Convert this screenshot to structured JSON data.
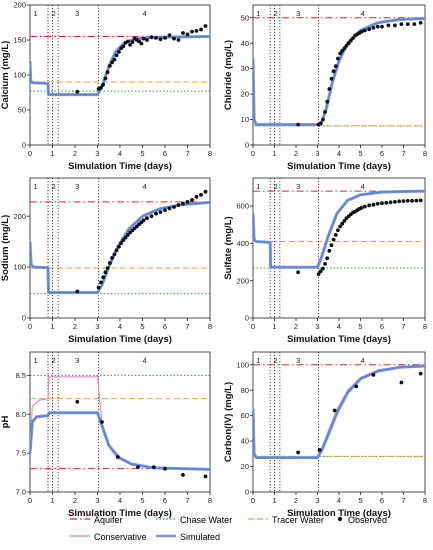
{
  "colors": {
    "aquifer": "#d62728",
    "chase": "#2ca02c",
    "tracer": "#f0a030",
    "observed": "#111111",
    "conservative": "#e07ac8",
    "simulated": "#7f94e0",
    "simulated_blue": "#4f86d9",
    "axis": "#222222"
  },
  "chart_data": [
    {
      "type": "line",
      "ylabel": "Calcium (mg/L)",
      "xlabel": "Simulation Time (days)",
      "xlim": [
        0,
        8
      ],
      "ylim": [
        0,
        200
      ],
      "xticks": [
        "0",
        "1",
        "2",
        "3",
        "4",
        "5",
        "6",
        "7",
        "8"
      ],
      "yticks": [
        "0",
        "50",
        "100",
        "150",
        "200"
      ],
      "xticks_v": [
        0,
        1,
        2,
        3,
        4,
        5,
        6,
        7,
        8
      ],
      "yticks_v": [
        0,
        50,
        100,
        150,
        200
      ],
      "stage_labels": [
        "1",
        "2",
        "3",
        "4"
      ],
      "stage_x": [
        0.25,
        1.05,
        2.1,
        5.1
      ],
      "phase_lines": [
        0.8,
        1.0,
        1.25,
        3.05
      ],
      "aquifer": 155,
      "chase": 77,
      "tracer": 90,
      "sim": [
        [
          0,
          120
        ],
        [
          0.03,
          92
        ],
        [
          0.1,
          89
        ],
        [
          0.8,
          88
        ],
        [
          0.82,
          72
        ],
        [
          1.0,
          72
        ],
        [
          3.0,
          72
        ],
        [
          3.2,
          83
        ],
        [
          3.5,
          112
        ],
        [
          3.8,
          133
        ],
        [
          4.2,
          146
        ],
        [
          4.7,
          152
        ],
        [
          5.5,
          154
        ],
        [
          8,
          155
        ]
      ],
      "cons": null,
      "obs": [
        [
          2.1,
          76
        ],
        [
          3.05,
          80
        ],
        [
          3.15,
          82
        ],
        [
          3.25,
          86
        ],
        [
          3.35,
          95
        ],
        [
          3.45,
          104
        ],
        [
          3.55,
          113
        ],
        [
          3.65,
          118
        ],
        [
          3.75,
          122
        ],
        [
          3.85,
          128
        ],
        [
          3.95,
          133
        ],
        [
          4.05,
          138
        ],
        [
          4.15,
          141
        ],
        [
          4.25,
          146
        ],
        [
          4.35,
          148
        ],
        [
          4.45,
          143
        ],
        [
          4.55,
          147
        ],
        [
          4.65,
          152
        ],
        [
          4.75,
          150
        ],
        [
          4.85,
          148
        ],
        [
          4.95,
          145
        ],
        [
          5.05,
          152
        ],
        [
          5.2,
          150
        ],
        [
          5.4,
          154
        ],
        [
          5.6,
          153
        ],
        [
          5.8,
          151
        ],
        [
          6.0,
          153
        ],
        [
          6.2,
          157
        ],
        [
          6.4,
          152
        ],
        [
          6.6,
          150
        ],
        [
          6.8,
          160
        ],
        [
          7.0,
          158
        ],
        [
          7.2,
          162
        ],
        [
          7.4,
          163
        ],
        [
          7.6,
          165
        ],
        [
          7.8,
          170
        ]
      ]
    },
    {
      "type": "line",
      "ylabel": "Chloride (mg/L)",
      "xlabel": "Simulation Time (days)",
      "xlim": [
        0,
        8
      ],
      "ylim": [
        0,
        55
      ],
      "xticks": [
        "0",
        "1",
        "2",
        "3",
        "4",
        "5",
        "6",
        "7",
        "8"
      ],
      "yticks": [
        "0",
        "10",
        "20",
        "30",
        "40",
        "50"
      ],
      "xticks_v": [
        0,
        1,
        2,
        3,
        4,
        5,
        6,
        7,
        8
      ],
      "yticks_v": [
        0,
        10,
        20,
        30,
        40,
        50
      ],
      "stage_labels": [
        "1",
        "2",
        "3",
        "4"
      ],
      "stage_x": [
        0.25,
        1.05,
        2.1,
        5.1
      ],
      "phase_lines": [
        0.8,
        1.0,
        1.25,
        3.05
      ],
      "aquifer": 50,
      "chase": 7.5,
      "tracer": 7.5,
      "sim": [
        [
          0,
          34
        ],
        [
          0.05,
          10
        ],
        [
          0.15,
          8
        ],
        [
          3.0,
          8
        ],
        [
          3.2,
          9
        ],
        [
          3.4,
          14
        ],
        [
          3.7,
          25
        ],
        [
          4.0,
          33
        ],
        [
          4.4,
          40
        ],
        [
          5.0,
          45
        ],
        [
          5.8,
          48
        ],
        [
          6.8,
          49.3
        ],
        [
          8,
          49.7
        ]
      ],
      "cons": null,
      "obs": [
        [
          2.1,
          8
        ],
        [
          3.05,
          8
        ],
        [
          3.15,
          8.5
        ],
        [
          3.25,
          10
        ],
        [
          3.35,
          13
        ],
        [
          3.45,
          17
        ],
        [
          3.55,
          22
        ],
        [
          3.65,
          26
        ],
        [
          3.75,
          29
        ],
        [
          3.85,
          31
        ],
        [
          3.95,
          34
        ],
        [
          4.05,
          36
        ],
        [
          4.15,
          37
        ],
        [
          4.25,
          38
        ],
        [
          4.35,
          39
        ],
        [
          4.45,
          40
        ],
        [
          4.55,
          41
        ],
        [
          4.65,
          42
        ],
        [
          4.75,
          43
        ],
        [
          4.85,
          43.5
        ],
        [
          4.95,
          44
        ],
        [
          5.05,
          44.5
        ],
        [
          5.2,
          45
        ],
        [
          5.4,
          45.5
        ],
        [
          5.6,
          46
        ],
        [
          5.8,
          46.5
        ],
        [
          6.0,
          46.5
        ],
        [
          6.3,
          47
        ],
        [
          6.6,
          47
        ],
        [
          6.9,
          47.5
        ],
        [
          7.2,
          47.5
        ],
        [
          7.5,
          47.5
        ],
        [
          7.8,
          48
        ]
      ]
    },
    {
      "type": "line",
      "ylabel": "Sodium (mg/L)",
      "xlabel": "Simulation Time (days)",
      "xlim": [
        0,
        8
      ],
      "ylim": [
        0,
        275
      ],
      "xticks": [
        "0",
        "1",
        "2",
        "3",
        "4",
        "5",
        "6",
        "7",
        "8"
      ],
      "yticks": [
        "0",
        "100",
        "200"
      ],
      "xticks_v": [
        0,
        1,
        2,
        3,
        4,
        5,
        6,
        7,
        8
      ],
      "yticks_v": [
        0,
        100,
        200
      ],
      "stage_labels": [
        "1",
        "2",
        "3",
        "4"
      ],
      "stage_x": [
        0.25,
        1.05,
        2.1,
        5.1
      ],
      "phase_lines": [
        0.8,
        1.0,
        1.25,
        3.05
      ],
      "aquifer": 228,
      "chase": 48,
      "tracer": 98,
      "sim": [
        [
          0,
          150
        ],
        [
          0.05,
          105
        ],
        [
          0.15,
          100
        ],
        [
          0.8,
          99
        ],
        [
          0.82,
          50
        ],
        [
          3.0,
          50
        ],
        [
          3.2,
          65
        ],
        [
          3.5,
          100
        ],
        [
          3.9,
          140
        ],
        [
          4.4,
          175
        ],
        [
          5.0,
          200
        ],
        [
          5.8,
          215
        ],
        [
          6.8,
          223
        ],
        [
          8,
          227
        ]
      ],
      "cons": null,
      "obs": [
        [
          2.1,
          52
        ],
        [
          3.05,
          60
        ],
        [
          3.15,
          70
        ],
        [
          3.25,
          80
        ],
        [
          3.35,
          90
        ],
        [
          3.45,
          98
        ],
        [
          3.55,
          108
        ],
        [
          3.65,
          118
        ],
        [
          3.75,
          125
        ],
        [
          3.85,
          133
        ],
        [
          3.95,
          140
        ],
        [
          4.05,
          147
        ],
        [
          4.15,
          153
        ],
        [
          4.25,
          158
        ],
        [
          4.35,
          163
        ],
        [
          4.45,
          168
        ],
        [
          4.55,
          172
        ],
        [
          4.65,
          176
        ],
        [
          4.75,
          180
        ],
        [
          4.85,
          184
        ],
        [
          4.95,
          188
        ],
        [
          5.05,
          192
        ],
        [
          5.2,
          196
        ],
        [
          5.4,
          200
        ],
        [
          5.6,
          205
        ],
        [
          5.8,
          208
        ],
        [
          6.0,
          212
        ],
        [
          6.2,
          215
        ],
        [
          6.4,
          218
        ],
        [
          6.6,
          222
        ],
        [
          6.8,
          225
        ],
        [
          7.0,
          228
        ],
        [
          7.2,
          232
        ],
        [
          7.4,
          238
        ],
        [
          7.6,
          242
        ],
        [
          7.8,
          248
        ]
      ]
    },
    {
      "type": "line",
      "ylabel": "Sulfate (mg/L)",
      "xlabel": "Simulation Time (days)",
      "xlim": [
        0,
        8
      ],
      "ylim": [
        0,
        750
      ],
      "xticks": [
        "0",
        "1",
        "2",
        "3",
        "4",
        "5",
        "6",
        "7",
        "8"
      ],
      "yticks": [
        "0",
        "200",
        "400",
        "600"
      ],
      "xticks_v": [
        0,
        1,
        2,
        3,
        4,
        5,
        6,
        7,
        8
      ],
      "yticks_v": [
        0,
        200,
        400,
        600
      ],
      "stage_labels": [
        "1",
        "2",
        "3",
        "4"
      ],
      "stage_x": [
        0.25,
        1.05,
        2.1,
        5.1
      ],
      "phase_lines": [
        0.8,
        1.0,
        1.25,
        3.05
      ],
      "aquifer": 680,
      "chase": 268,
      "tracer": 410,
      "sim": [
        [
          0,
          560
        ],
        [
          0.05,
          420
        ],
        [
          0.15,
          410
        ],
        [
          0.8,
          405
        ],
        [
          0.82,
          272
        ],
        [
          3.0,
          272
        ],
        [
          3.2,
          330
        ],
        [
          3.5,
          440
        ],
        [
          3.9,
          560
        ],
        [
          4.4,
          630
        ],
        [
          5.0,
          660
        ],
        [
          6.0,
          675
        ],
        [
          8,
          680
        ]
      ],
      "cons": null,
      "obs": [
        [
          2.1,
          245
        ],
        [
          3.05,
          235
        ],
        [
          3.15,
          250
        ],
        [
          3.25,
          265
        ],
        [
          3.35,
          290
        ],
        [
          3.45,
          320
        ],
        [
          3.55,
          360
        ],
        [
          3.65,
          390
        ],
        [
          3.75,
          420
        ],
        [
          3.85,
          445
        ],
        [
          3.95,
          470
        ],
        [
          4.05,
          490
        ],
        [
          4.15,
          505
        ],
        [
          4.25,
          520
        ],
        [
          4.35,
          535
        ],
        [
          4.45,
          545
        ],
        [
          4.55,
          555
        ],
        [
          4.65,
          565
        ],
        [
          4.75,
          570
        ],
        [
          4.85,
          578
        ],
        [
          4.95,
          585
        ],
        [
          5.05,
          590
        ],
        [
          5.2,
          597
        ],
        [
          5.4,
          603
        ],
        [
          5.6,
          607
        ],
        [
          5.8,
          612
        ],
        [
          6.0,
          615
        ],
        [
          6.2,
          617
        ],
        [
          6.4,
          620
        ],
        [
          6.6,
          622
        ],
        [
          6.8,
          625
        ],
        [
          7.0,
          626
        ],
        [
          7.2,
          628
        ],
        [
          7.4,
          628
        ],
        [
          7.6,
          629
        ],
        [
          7.8,
          630
        ]
      ]
    },
    {
      "type": "line",
      "ylabel": "pH",
      "xlabel": "Simulation Time (days)",
      "xlim": [
        0,
        8
      ],
      "ylim": [
        7.0,
        8.8
      ],
      "xticks": [
        "0",
        "1",
        "2",
        "3",
        "4",
        "5",
        "6",
        "7",
        "8"
      ],
      "yticks": [
        "7.0",
        "7.5",
        "8.0",
        "8.5"
      ],
      "xticks_v": [
        0,
        1,
        2,
        3,
        4,
        5,
        6,
        7,
        8
      ],
      "yticks_v": [
        7.0,
        7.5,
        8.0,
        8.5
      ],
      "stage_labels": [
        "1",
        "2",
        "3",
        "4"
      ],
      "stage_x": [
        0.25,
        1.05,
        2.1,
        5.1
      ],
      "phase_lines": [
        0.8,
        1.0,
        1.25,
        3.05
      ],
      "aquifer": 7.3,
      "chase": 8.5,
      "tracer": 8.2,
      "sim": [
        [
          0,
          7.5
        ],
        [
          0.1,
          7.9
        ],
        [
          0.3,
          7.97
        ],
        [
          0.8,
          7.98
        ],
        [
          0.85,
          8.02
        ],
        [
          3.0,
          8.02
        ],
        [
          3.2,
          7.85
        ],
        [
          3.5,
          7.6
        ],
        [
          3.9,
          7.45
        ],
        [
          4.5,
          7.36
        ],
        [
          5.5,
          7.31
        ],
        [
          8,
          7.29
        ]
      ],
      "cons": [
        [
          0,
          7.5
        ],
        [
          0.1,
          8.1
        ],
        [
          0.4,
          8.18
        ],
        [
          0.8,
          8.2
        ],
        [
          0.85,
          8.48
        ],
        [
          3.0,
          8.48
        ],
        [
          3.2,
          7.9
        ],
        [
          3.5,
          7.62
        ],
        [
          4.0,
          7.45
        ],
        [
          4.6,
          7.35
        ],
        [
          5.5,
          7.31
        ],
        [
          8,
          7.3
        ]
      ],
      "obs": [
        [
          2.1,
          8.16
        ],
        [
          3.2,
          7.9
        ],
        [
          3.9,
          7.45
        ],
        [
          4.8,
          7.32
        ],
        [
          5.5,
          7.32
        ],
        [
          6.0,
          7.3
        ],
        [
          6.8,
          7.22
        ],
        [
          7.8,
          7.2
        ]
      ]
    },
    {
      "type": "line",
      "ylabel": "Carbon(IV) (mg/L)",
      "xlabel": "Simulation Time (days)",
      "xlim": [
        0,
        8
      ],
      "ylim": [
        0,
        110
      ],
      "xticks": [
        "0",
        "1",
        "2",
        "3",
        "4",
        "5",
        "6",
        "7",
        "8"
      ],
      "yticks": [
        "0",
        "20",
        "40",
        "60",
        "80",
        "100"
      ],
      "xticks_v": [
        0,
        1,
        2,
        3,
        4,
        5,
        6,
        7,
        8
      ],
      "yticks_v": [
        0,
        20,
        40,
        60,
        80,
        100
      ],
      "stage_labels": [
        "1",
        "2",
        "3",
        "4"
      ],
      "stage_x": [
        0.25,
        1.05,
        2.1,
        5.1
      ],
      "phase_lines": [
        0.8,
        1.0,
        1.25,
        3.05
      ],
      "aquifer": 100,
      "chase": 28,
      "tracer": 28,
      "sim": [
        [
          0,
          65
        ],
        [
          0.05,
          30
        ],
        [
          0.15,
          27
        ],
        [
          3.0,
          27
        ],
        [
          3.2,
          33
        ],
        [
          3.5,
          45
        ],
        [
          3.9,
          62
        ],
        [
          4.4,
          78
        ],
        [
          5.0,
          89
        ],
        [
          5.8,
          95
        ],
        [
          6.8,
          98
        ],
        [
          8,
          99
        ]
      ],
      "cons": [
        [
          0,
          65
        ],
        [
          0.05,
          30
        ],
        [
          0.15,
          27
        ],
        [
          3.0,
          27
        ],
        [
          3.2,
          35
        ],
        [
          3.5,
          48
        ],
        [
          3.9,
          65
        ],
        [
          4.4,
          80
        ],
        [
          5.0,
          90
        ],
        [
          5.8,
          96
        ],
        [
          6.8,
          98.5
        ],
        [
          8,
          99.5
        ]
      ],
      "obs": [
        [
          2.1,
          31
        ],
        [
          3.1,
          33
        ],
        [
          3.8,
          64
        ],
        [
          4.8,
          83
        ],
        [
          5.6,
          92
        ],
        [
          6.9,
          86
        ],
        [
          7.8,
          93
        ]
      ]
    }
  ],
  "legend": {
    "aquifer": "Aquifer",
    "chase": "Chase Water",
    "tracer": "Tracer Water",
    "observed": "Observed",
    "conservative": "Conservative",
    "simulated": "Simulated"
  }
}
